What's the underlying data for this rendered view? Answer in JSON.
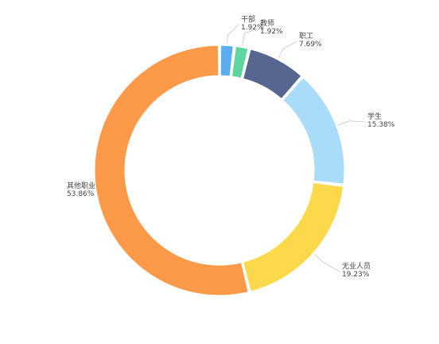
{
  "chart_data": {
    "type": "pie",
    "variant": "donut",
    "slices": [
      {
        "name": "干部",
        "value": 1.92,
        "label": "1.92%",
        "color": "#5aaef0"
      },
      {
        "name": "教师",
        "value": 1.92,
        "label": "1.92%",
        "color": "#5ed6a0"
      },
      {
        "name": "职工",
        "value": 7.69,
        "label": "7.69%",
        "color": "#566690"
      },
      {
        "name": "学生",
        "value": 15.38,
        "label": "15.38%",
        "color": "#a9dcf8"
      },
      {
        "name": "无业人员",
        "value": 19.23,
        "label": "19.23%",
        "color": "#fcd94a"
      },
      {
        "name": "其他职业",
        "value": 53.86,
        "label": "53.86%",
        "color": "#fd9a4a"
      }
    ],
    "legend": "none",
    "start_angle": "top, clockwise"
  }
}
